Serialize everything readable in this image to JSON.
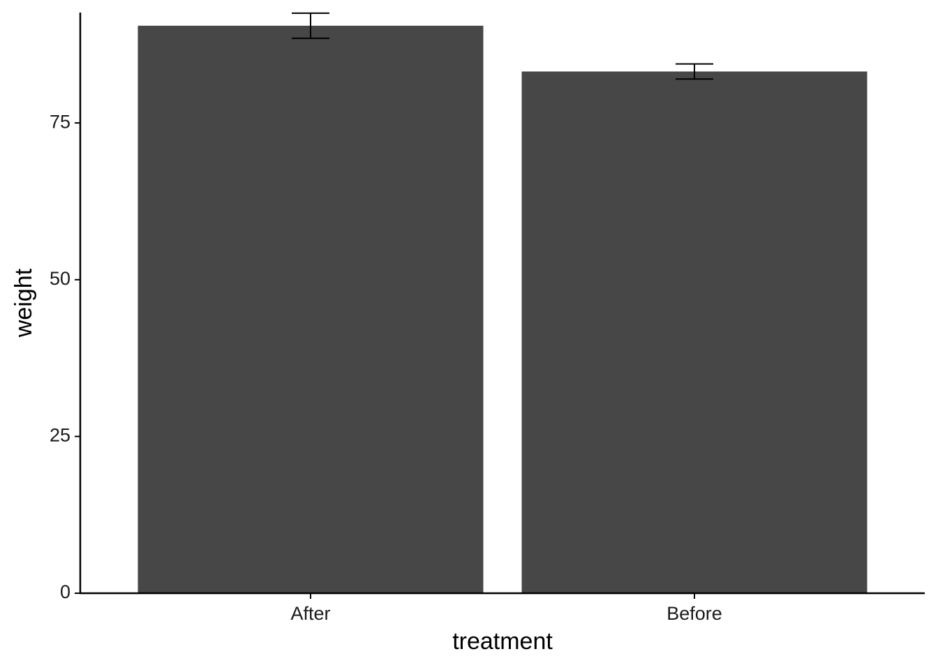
{
  "chart_data": {
    "type": "bar",
    "x_label": "treatment",
    "y_label": "weight",
    "categories": [
      "After",
      "Before"
    ],
    "values": [
      90.5,
      83.2
    ],
    "errors": [
      2.0,
      1.2
    ],
    "color": "#474747",
    "ylim": [
      0,
      92.6
    ],
    "yticks": [
      0,
      25,
      50,
      75
    ],
    "grid": false
  }
}
